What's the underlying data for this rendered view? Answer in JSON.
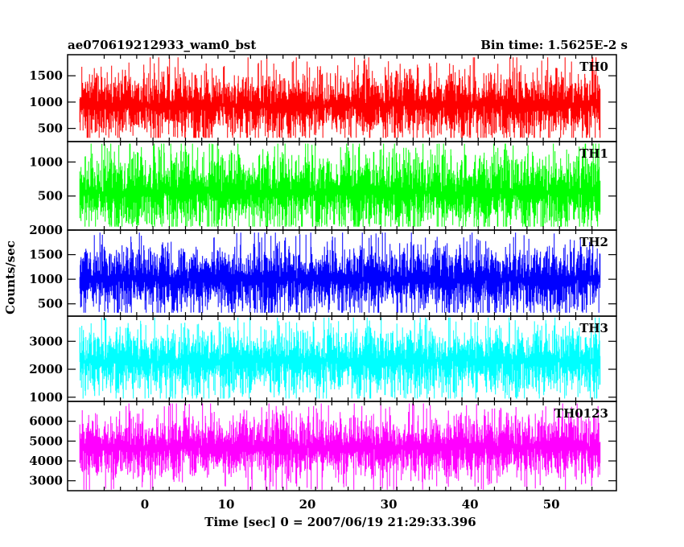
{
  "header": {
    "title": "ae070619212933_wam0_bst",
    "bin_time": "Bin time: 1.5625E-2 s"
  },
  "chart_data": {
    "type": "line",
    "xlabel": "Time [sec] 0 = 2007/06/19 21:29:33.396",
    "ylabel": "Counts/sec",
    "xlim": [
      -9.5,
      58
    ],
    "x_range_data": [
      -8,
      56
    ],
    "xticks": [
      0,
      10,
      20,
      30,
      40,
      50
    ],
    "panels": [
      {
        "name": "TH0",
        "color": "#ff0000",
        "ylim": [
          250,
          1900
        ],
        "yticks": [
          500,
          1000,
          1500
        ],
        "band_mean": 950,
        "band_spread": 280,
        "peak_high": 1850,
        "peak_low": 320
      },
      {
        "name": "TH1",
        "color": "#00ff00",
        "ylim": [
          0,
          1300
        ],
        "yticks": [
          500,
          1000
        ],
        "band_mean": 560,
        "band_spread": 250,
        "peak_high": 1270,
        "peak_low": 50
      },
      {
        "name": "TH2",
        "color": "#0000ff",
        "ylim": [
          250,
          2000
        ],
        "yticks": [
          500,
          1000,
          1500,
          2000
        ],
        "band_mean": 1000,
        "band_spread": 300,
        "peak_high": 1950,
        "peak_low": 320
      },
      {
        "name": "TH3",
        "color": "#00ffff",
        "ylim": [
          850,
          3900
        ],
        "yticks": [
          1000,
          2000,
          3000
        ],
        "band_mean": 2300,
        "band_spread": 520,
        "peak_high": 3850,
        "peak_low": 950
      },
      {
        "name": "TH0123",
        "color": "#ff00ff",
        "ylim": [
          2500,
          7000
        ],
        "yticks": [
          3000,
          4000,
          5000,
          6000
        ],
        "band_mean": 4700,
        "band_spread": 700,
        "peak_high": 6900,
        "peak_low": 2550
      }
    ]
  }
}
